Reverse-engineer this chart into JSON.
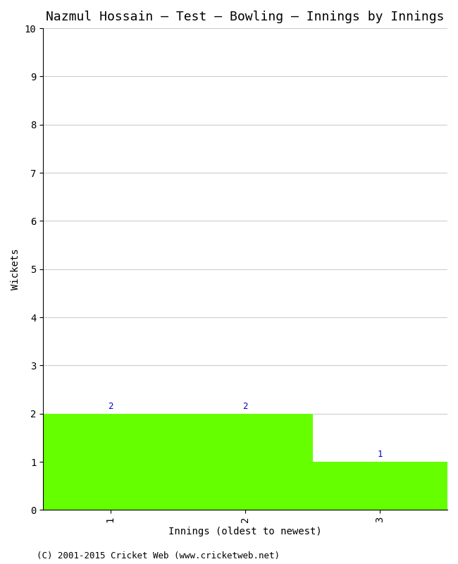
{
  "title": "Nazmul Hossain – Test – Bowling – Innings by Innings",
  "xlabel": "Innings (oldest to newest)",
  "ylabel": "Wickets",
  "categories": [
    1,
    2,
    3
  ],
  "values": [
    2,
    2,
    1
  ],
  "bar_color": "#66ff00",
  "bar_edge_color": "#66ff00",
  "label_color": "#0000cc",
  "ylim": [
    0,
    10
  ],
  "yticks": [
    0,
    1,
    2,
    3,
    4,
    5,
    6,
    7,
    8,
    9,
    10
  ],
  "xticks": [
    1,
    2,
    3
  ],
  "background_color": "#ffffff",
  "grid_color": "#cccccc",
  "footer": "(C) 2001-2015 Cricket Web (www.cricketweb.net)",
  "title_fontsize": 13,
  "label_fontsize": 10,
  "tick_fontsize": 10,
  "footer_fontsize": 9,
  "annotation_fontsize": 9,
  "bar_width": 1.0
}
